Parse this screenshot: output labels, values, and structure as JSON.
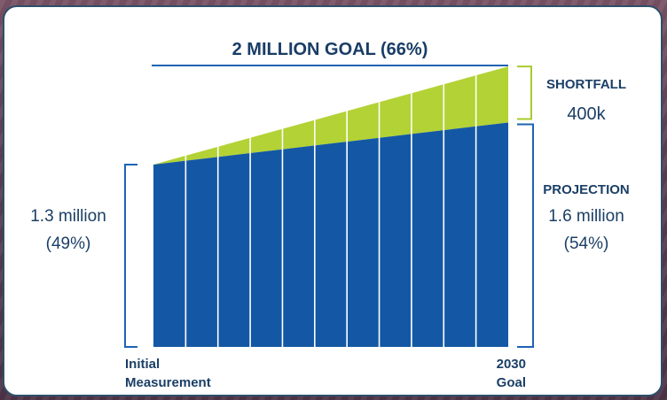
{
  "chart_data": {
    "type": "bar",
    "title": "2 MILLION GOAL (66%)",
    "x_start_label_line1": "Initial",
    "x_start_label_line2": "Measurement",
    "x_end_label_line1": "2030",
    "x_end_label_line2": "Goal",
    "bar_count": 11,
    "baseline": {
      "value_label": "1.3 million",
      "percent_label": "(49%)",
      "value": 1.3
    },
    "projection": {
      "heading": "PROJECTION",
      "value_label": "1.6 million",
      "percent_label": "(54%)",
      "value": 1.6
    },
    "goal": {
      "value": 2.0
    },
    "shortfall": {
      "heading": "SHORTFALL",
      "value_label": "400k",
      "value": 0.4
    },
    "unit": "million",
    "colors": {
      "projection_fill": "#1458a5",
      "shortfall_fill": "#b3d235",
      "bracket": "#1e63b3",
      "shortfall_bracket": "#a8cc2e",
      "text_dark": "#1b3f66",
      "title": "#193d66"
    }
  }
}
